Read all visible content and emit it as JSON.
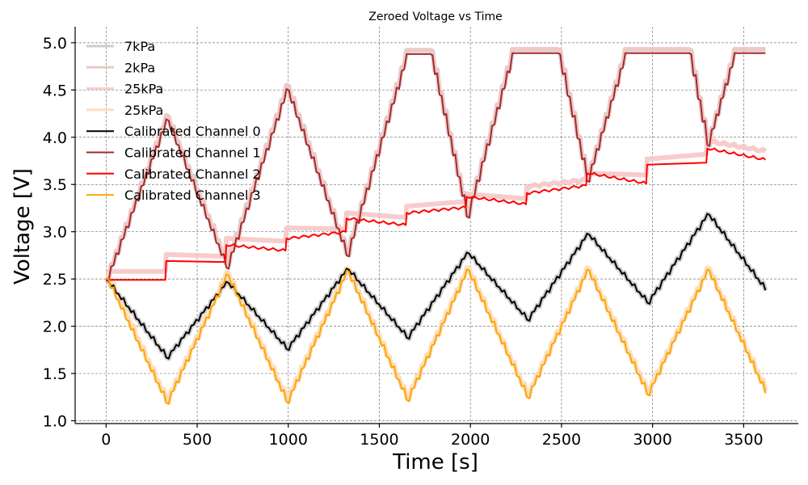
{
  "chart_data": {
    "type": "line",
    "title": "Zeroed Voltage vs Time",
    "xlabel": "Time [s]",
    "ylabel": "Voltage [V]",
    "xlim": [
      -170,
      3800
    ],
    "ylim": [
      0.97,
      5.17
    ],
    "xticks": [
      0,
      500,
      1000,
      1500,
      2000,
      2500,
      3000,
      3500
    ],
    "xtick_labels": [
      "0",
      "500",
      "1000",
      "1500",
      "2000",
      "2500",
      "3000",
      "3500"
    ],
    "yticks": [
      1.0,
      1.5,
      2.0,
      2.5,
      3.0,
      3.5,
      4.0,
      4.5,
      5.0
    ],
    "ytick_labels": [
      "1.0",
      "1.5",
      "2.0",
      "2.5",
      "3.0",
      "3.5",
      "4.0",
      "4.5",
      "5.0"
    ],
    "grid": true,
    "legend_position": "top-left",
    "series": [
      {
        "name": "7kPa",
        "color": "#c8c8c8",
        "opacity": 0.9,
        "width": 6,
        "x": [
          0,
          330,
          660,
          990,
          1320,
          1650,
          1980,
          2310,
          2640,
          2970,
          3300,
          3620
        ],
        "y": [
          2.49,
          1.67,
          2.47,
          1.76,
          2.61,
          1.88,
          2.78,
          2.07,
          2.98,
          2.25,
          3.19,
          2.38
        ]
      },
      {
        "name": "2kPa",
        "color": "#e8c4c4",
        "opacity": 0.9,
        "width": 6,
        "x": [
          0,
          330,
          660,
          990,
          1320,
          1650,
          1780,
          1980,
          2230,
          2310,
          2480,
          2640,
          2850,
          2970,
          3200,
          3300,
          3450,
          3620
        ],
        "y": [
          2.51,
          4.23,
          2.66,
          4.55,
          2.77,
          4.92,
          4.92,
          3.18,
          4.93,
          4.93,
          4.93,
          3.56,
          4.93,
          4.93,
          4.93,
          3.93,
          4.93,
          4.93
        ]
      },
      {
        "name": "25kPa",
        "color": "#f7c6c6",
        "opacity": 0.9,
        "width": 6,
        "x": [
          0,
          325,
          330,
          655,
          660,
          985,
          990,
          1315,
          1320,
          1645,
          1650,
          1975,
          1980,
          2305,
          2310,
          2635,
          2640,
          2965,
          2970,
          3295,
          3300,
          3620
        ],
        "y": [
          2.58,
          2.58,
          2.76,
          2.74,
          2.93,
          2.9,
          3.04,
          3.03,
          3.2,
          3.15,
          3.27,
          3.32,
          3.4,
          3.35,
          3.48,
          3.55,
          3.62,
          3.6,
          3.77,
          3.82,
          3.96,
          3.85
        ]
      },
      {
        "name": "25kPa",
        "color": "#fcdcb8",
        "opacity": 0.9,
        "width": 6,
        "x": [
          0,
          330,
          660,
          990,
          1320,
          1650,
          1980,
          2310,
          2640,
          2970,
          3300,
          3620
        ],
        "y": [
          2.55,
          1.21,
          2.57,
          1.22,
          2.61,
          1.24,
          2.62,
          1.27,
          2.62,
          1.3,
          2.62,
          1.31
        ]
      },
      {
        "name": "Calibrated Channel 0",
        "color": "#000000",
        "opacity": 1,
        "width": 2,
        "x": [
          0,
          330,
          660,
          990,
          1320,
          1650,
          1980,
          2310,
          2640,
          2970,
          3300,
          3620
        ],
        "y": [
          2.49,
          1.67,
          2.47,
          1.76,
          2.61,
          1.88,
          2.78,
          2.07,
          2.98,
          2.25,
          3.19,
          2.38
        ]
      },
      {
        "name": "Calibrated Channel 1",
        "color": "#a52a2a",
        "opacity": 1,
        "width": 2,
        "x": [
          0,
          330,
          660,
          990,
          1320,
          1650,
          1780,
          1980,
          2230,
          2310,
          2480,
          2640,
          2850,
          2970,
          3200,
          3300,
          3450,
          3620
        ],
        "y": [
          2.49,
          4.19,
          2.62,
          4.51,
          2.75,
          4.88,
          4.88,
          3.16,
          4.89,
          4.89,
          4.89,
          3.54,
          4.89,
          4.89,
          4.89,
          3.92,
          4.89,
          4.89
        ]
      },
      {
        "name": "Calibrated Channel 2",
        "color": "#ff0000",
        "opacity": 1,
        "width": 2,
        "x": [
          0,
          325,
          330,
          655,
          660,
          985,
          990,
          1315,
          1320,
          1645,
          1650,
          1975,
          1980,
          2305,
          2310,
          2635,
          2640,
          2965,
          2970,
          3295,
          3300,
          3620
        ],
        "y": [
          2.49,
          2.49,
          2.69,
          2.68,
          2.86,
          2.8,
          2.93,
          3.0,
          3.14,
          3.07,
          3.2,
          3.26,
          3.37,
          3.29,
          3.41,
          3.49,
          3.62,
          3.51,
          3.71,
          3.73,
          3.88,
          3.76
        ]
      },
      {
        "name": "Calibrated Channel 3",
        "color": "#ffa500",
        "opacity": 1,
        "width": 2,
        "x": [
          0,
          330,
          660,
          990,
          1320,
          1650,
          1980,
          2310,
          2640,
          2970,
          3300,
          3620
        ],
        "y": [
          2.51,
          1.19,
          2.55,
          1.2,
          2.59,
          1.22,
          2.6,
          1.25,
          2.6,
          1.28,
          2.6,
          1.29
        ]
      }
    ]
  }
}
